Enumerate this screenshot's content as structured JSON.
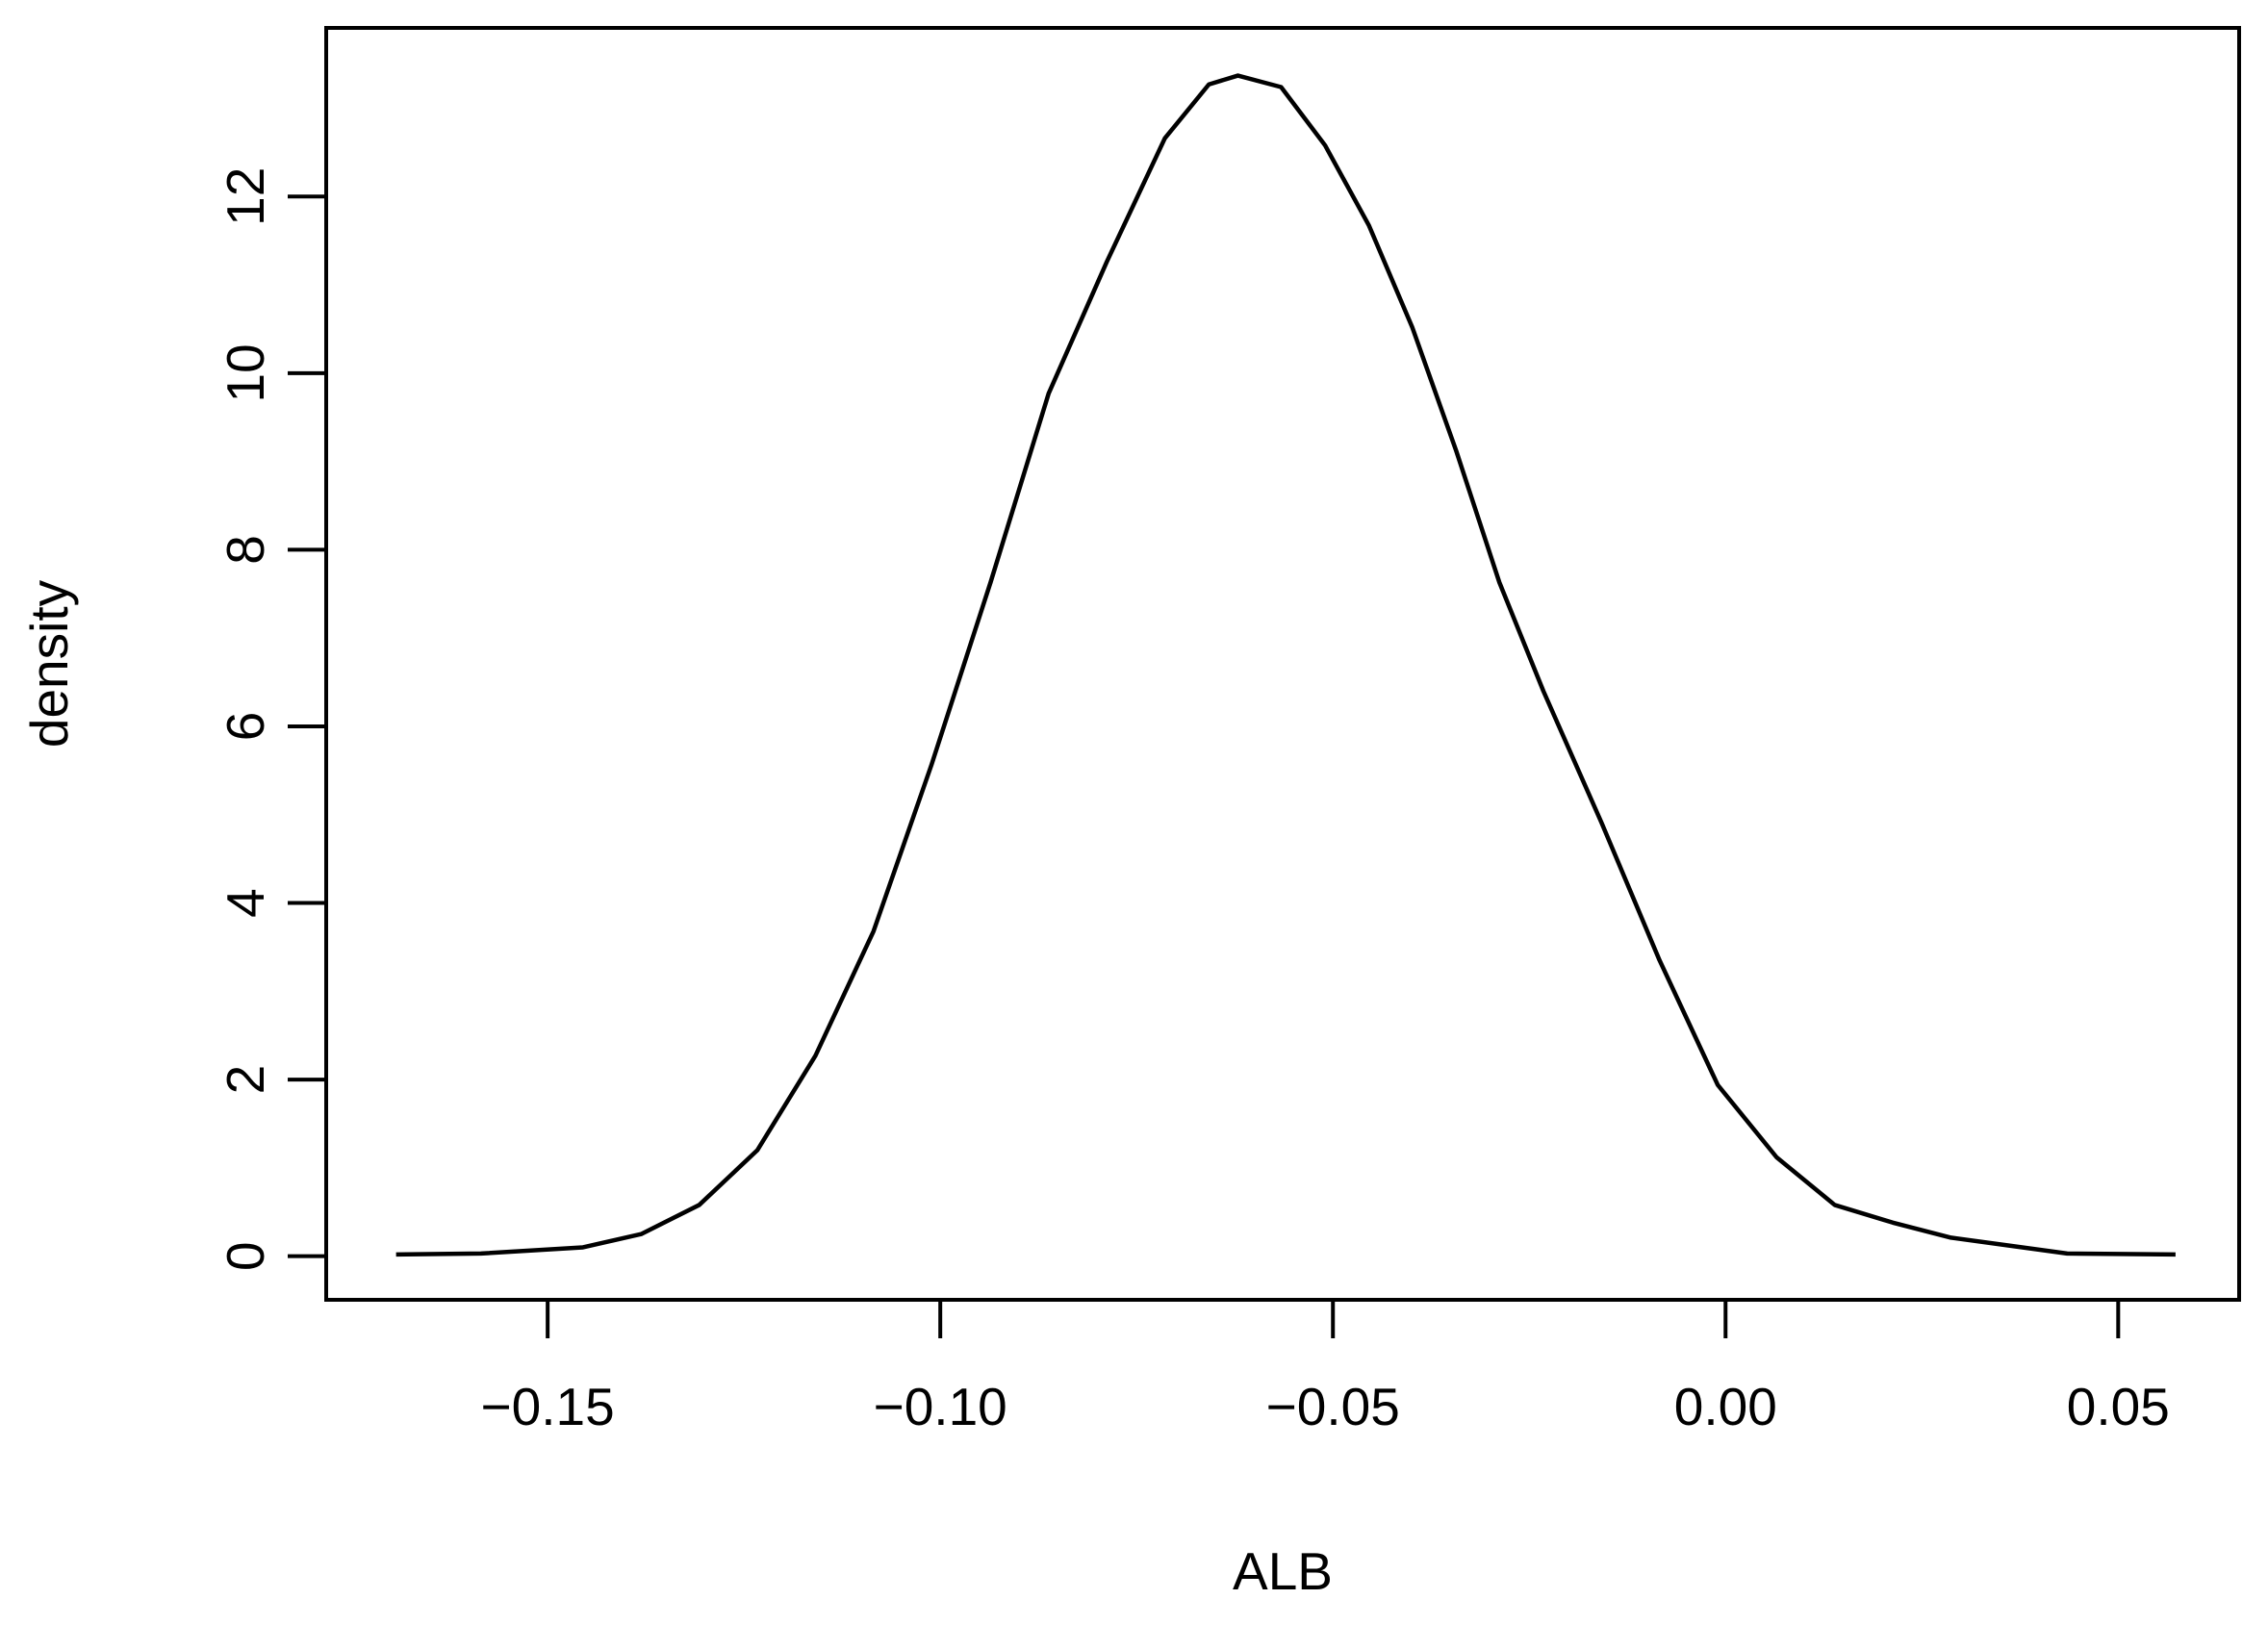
{
  "chart_data": {
    "type": "line",
    "x_label": "ALB",
    "y_label": "density",
    "x": [
      -0.1693,
      -0.1585,
      -0.1455,
      -0.1381,
      -0.1307,
      -0.1233,
      -0.1159,
      -0.1085,
      -0.1011,
      -0.0936,
      -0.0862,
      -0.0788,
      -0.0714,
      -0.0658,
      -0.0621,
      -0.0566,
      -0.051,
      -0.0454,
      -0.0399,
      -0.0343,
      -0.0288,
      -0.0232,
      -0.0158,
      -0.0084,
      -0.001,
      0.0065,
      0.0139,
      0.0213,
      0.0287,
      0.0361,
      0.0435,
      0.0573
    ],
    "series": [
      {
        "color": "#000000",
        "values": [
          0.02,
          0.03,
          0.1,
          0.25,
          0.58,
          1.2,
          2.27,
          3.68,
          5.57,
          7.63,
          9.77,
          11.26,
          12.66,
          13.27,
          13.37,
          13.24,
          12.58,
          11.67,
          10.52,
          9.12,
          7.63,
          6.4,
          4.91,
          3.35,
          1.94,
          1.12,
          0.58,
          0.38,
          0.21,
          0.12,
          0.03,
          0.02
        ]
      }
    ],
    "xlim": [
      -0.1782,
      0.0654
    ],
    "xticks": [
      {
        "value": -0.15,
        "label": "−0.15"
      },
      {
        "value": -0.1,
        "label": "−0.10"
      },
      {
        "value": -0.05,
        "label": "−0.05"
      },
      {
        "value": 0,
        "label": "0.00"
      },
      {
        "value": 0.05,
        "label": "0.05"
      }
    ],
    "ylim": [
      -0.494,
      13.91
    ],
    "yticks": [
      0,
      2,
      4,
      6,
      8,
      10,
      12
    ]
  }
}
